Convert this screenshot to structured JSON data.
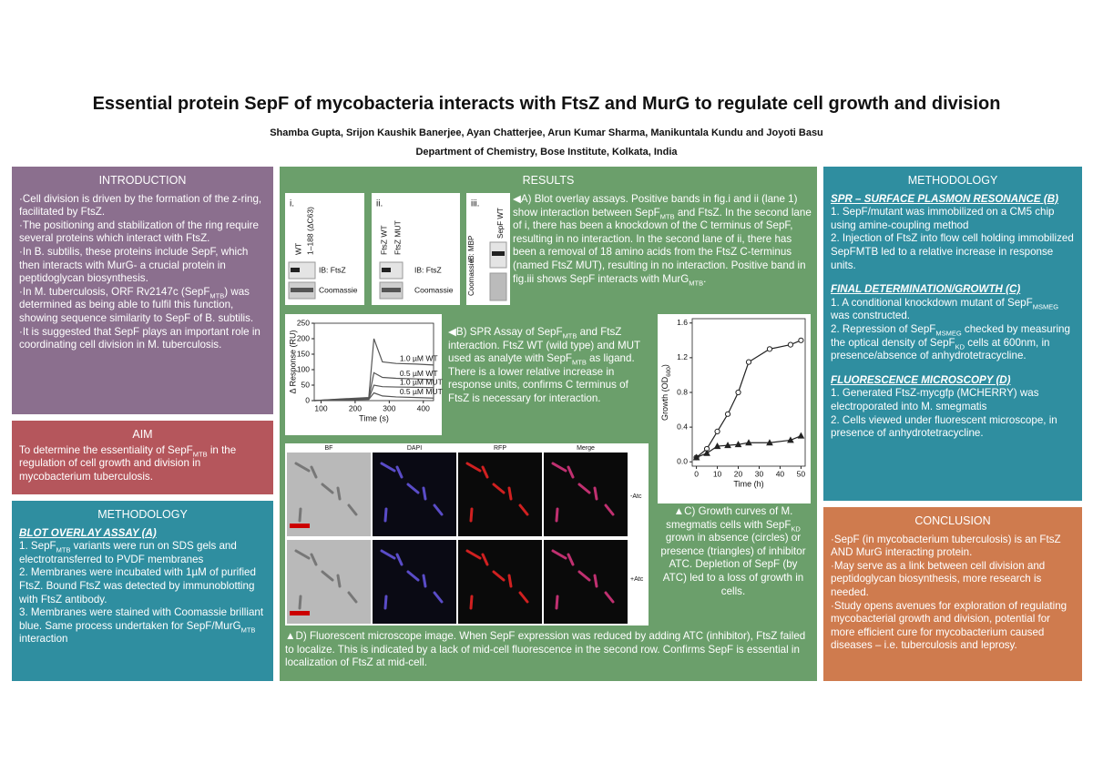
{
  "header": {
    "title": "Essential protein SepF of mycobacteria interacts with FtsZ and MurG to regulate cell growth and division",
    "authors": "Shamba Gupta, Srijon Kaushik Banerjee, Ayan Chatterjee, Arun Kumar Sharma, Manikuntala Kundu and Joyoti Basu",
    "affiliation": "Department of Chemistry, Bose Institute, Kolkata, India"
  },
  "introduction": {
    "heading": "INTRODUCTION",
    "items": [
      [
        "Cell division is driven by the formation of the z-ring, facilitated by FtsZ."
      ],
      [
        "The positioning and stabilization of the ring require several proteins which interact with FtsZ."
      ],
      [
        "In B. subtilis, these proteins include SepF, which then interacts with MurG- a crucial protein in peptidoglycan biosynthesis."
      ],
      [
        "In M. tuberculosis, ORF Rv2147c (SepF",
        "MTB",
        ") was determined as being able to fulfil this function, showing sequence similarity to SepF of B. subtilis."
      ],
      [
        "It is suggested that SepF plays an important role in coordinating cell division in M. tuberculosis."
      ]
    ]
  },
  "aim": {
    "heading": "AIM",
    "text": [
      "To determine the essentiality of SepF",
      "MTB",
      " in the regulation of cell growth and division in mycobacterium tuberculosis."
    ]
  },
  "methodology_left": {
    "heading": "METHODOLOGY",
    "subheading": "BLOT OVERLAY ASSAY (A)",
    "items": [
      [
        "1. SepF",
        "MTB",
        " variants were run on SDS gels and electrotransferred to PVDF membranes"
      ],
      [
        "2. Membranes were incubated with 1µM of purified FtsZ. Bound FtsZ was detected by immunoblotting with FtsZ antibody."
      ],
      [
        "3. Membranes were stained with Coomassie brilliant blue. Same process undertaken for SepF/MurG",
        "MTB",
        " interaction"
      ]
    ]
  },
  "results": {
    "heading": "RESULTS",
    "captions": {
      "a": [
        "A) Blot overlay assays. Positive bands in fig.i and ii (lane 1) show interaction between SepF",
        "MTB",
        " and FtsZ. In the second lane of i, there has been a knockdown of the C terminus of SepF, resulting in no interaction. In the second lane of ii, there has been a removal of 18 amino acids from the FtsZ C-terminus (named FtsZ MUT), resulting in no interaction. Positive band in fig.iii shows SepF interacts with MurG",
        "MTB",
        "."
      ],
      "b": [
        "B) SPR Assay of SepF",
        "MTB",
        " and FtsZ interaction. FtsZ WT (wild type) and MUT used as analyte with SepF",
        "MTB",
        " as ligand. There is a lower relative increase in response units, confirms C terminus of FtsZ is necessary for interaction."
      ],
      "c": [
        "C) Growth curves of M. smegmatis cells with SepF",
        "KD",
        " grown in absence (circles) or presence (triangles) of inhibitor ATC. Depletion of SepF (by ATC) led to a loss of growth in cells."
      ],
      "d": [
        "D) Fluorescent microscope image. When SepF expression was reduced by adding ATC (inhibitor), FtsZ failed to localize. This is indicated by a lack of mid-cell fluorescence in the second row. Confirms SepF is essential in localization of FtsZ at mid-cell."
      ]
    },
    "blots": [
      {
        "label": "i.",
        "lanes": [
          "WT",
          "1–188 (ΔC63)"
        ],
        "rows": [
          "IB: FtsZ",
          "Coomassie"
        ]
      },
      {
        "label": "ii.",
        "lanes": [
          "FtsZ WT",
          "FtsZ MUT"
        ],
        "rows": [
          "IB: FtsZ",
          "Coomassie"
        ]
      },
      {
        "label": "iii.",
        "lanes": [
          "SepF WT"
        ],
        "rows": [
          "IB: MBP",
          "Coomassie"
        ]
      }
    ],
    "spr": {
      "type": "line",
      "x_label": "Time (s)",
      "y_label": "Δ Response (RU)",
      "x": [
        80,
        150,
        240,
        255,
        280,
        320,
        380,
        430
      ],
      "xlim": [
        80,
        430
      ],
      "xticks": [
        100,
        200,
        300,
        400
      ],
      "ylim": [
        0,
        250
      ],
      "yticks": [
        0,
        50,
        100,
        150,
        200,
        250
      ],
      "series": [
        {
          "name": "1.0 µM WT",
          "color": "#555555",
          "values": [
            0,
            5,
            10,
            200,
            125,
            120,
            118,
            115
          ]
        },
        {
          "name": "0.5 µM WT",
          "color": "#555555",
          "values": [
            0,
            4,
            8,
            90,
            75,
            72,
            70,
            68
          ]
        },
        {
          "name": "1.0 µM MUT",
          "color": "#555555",
          "values": [
            0,
            3,
            6,
            50,
            45,
            44,
            43,
            42
          ]
        },
        {
          "name": "0.5 µM MUT",
          "color": "#555555",
          "values": [
            0,
            2,
            4,
            25,
            15,
            12,
            10,
            8
          ]
        }
      ]
    },
    "growth": {
      "type": "line",
      "x_label": "Time (h)",
      "y_label": [
        "Growth (OD",
        "600",
        ")"
      ],
      "x": [
        0,
        5,
        10,
        15,
        20,
        25,
        35,
        45,
        50
      ],
      "xlim": [
        -2,
        52
      ],
      "xticks": [
        0,
        10,
        20,
        30,
        40,
        50
      ],
      "ylim": [
        -0.05,
        1.65
      ],
      "yticks": [
        {
          "value": 0,
          "label": "0.0"
        },
        0.4,
        0.8,
        1.2,
        1.6
      ],
      "series": [
        {
          "marker": "circle",
          "color": "#222222",
          "values": [
            0.05,
            0.15,
            0.35,
            0.55,
            0.8,
            1.15,
            1.3,
            1.35,
            1.4
          ]
        },
        {
          "marker": "triangle",
          "color": "#222222",
          "values": [
            0.05,
            0.1,
            0.18,
            0.19,
            0.2,
            0.22,
            0.22,
            0.25,
            0.3
          ]
        }
      ]
    },
    "micrograph": {
      "columns": [
        "BF",
        "DAPI",
        "RFP",
        "Merge"
      ],
      "rows": [
        "-Atc",
        "+Atc"
      ]
    }
  },
  "methodology_right": {
    "heading": "METHODOLOGY",
    "sections": [
      {
        "subheading": "SPR – SURFACE PLASMON RESONANCE (B)",
        "items": [
          [
            "1. SepF/mutant was immobilized on a CM5 chip using amine-coupling method"
          ],
          [
            "2. Injection of FtsZ into flow cell holding immobilized SepFMTB led to a relative increase in response units."
          ]
        ]
      },
      {
        "subheading": "FINAL DETERMINATION/GROWTH (C)",
        "items": [
          [
            "1. A conditional knockdown mutant of SepF",
            "MSMEG",
            " was constructed."
          ],
          [
            "2. Repression of SepF",
            "MSMEG",
            " checked by measuring the optical density of SepF",
            "KD",
            " cells at 600nm, in presence/absence of anhydrotetracycline."
          ]
        ]
      },
      {
        "subheading": "FLUORESCENCE MICROSCOPY (D)",
        "items": [
          [
            "1. Generated FtsZ-mycgfp (MCHERRY) was electroporated into M. smegmatis"
          ],
          [
            "2. Cells viewed under fluorescent microscope, in presence of anhydrotetracycline."
          ]
        ]
      }
    ]
  },
  "conclusion": {
    "heading": "CONCLUSION",
    "items": [
      [
        "SepF (in mycobacterium tuberculosis) is an FtsZ AND MurG interacting protein."
      ],
      [
        "May serve as a link between cell division and peptidoglycan biosynthesis, more research is needed."
      ],
      [
        "Study opens avenues for exploration of regulating mycobacterial growth and division, potential for more efficient cure for mycobacterium caused diseases – i.e. tuberculosis and leprosy."
      ]
    ]
  }
}
